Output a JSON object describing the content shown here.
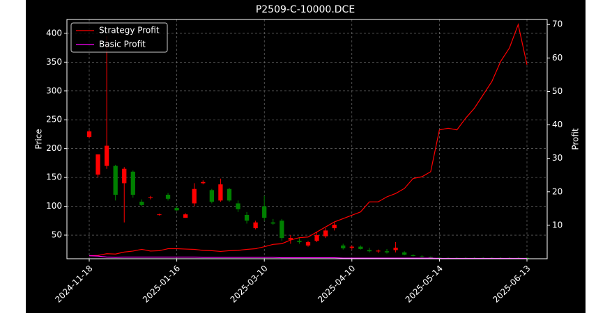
{
  "chart_data": {
    "type": "candlestick",
    "title": "P2509-C-10000.DCE",
    "ylabel": "Price",
    "y2label": "Profit",
    "categories": [
      "2024-11-18",
      null,
      null,
      null,
      null,
      null,
      null,
      null,
      null,
      null,
      "2025-01-16",
      null,
      null,
      null,
      null,
      null,
      null,
      null,
      null,
      null,
      "2025-03-10",
      null,
      null,
      null,
      null,
      null,
      null,
      null,
      null,
      null,
      "2025-04-10",
      null,
      null,
      null,
      null,
      null,
      null,
      null,
      null,
      null,
      "2025-05-14",
      null,
      null,
      null,
      null,
      null,
      null,
      null,
      null,
      null,
      "2025-06-13"
    ],
    "open": [
      220,
      155,
      170,
      170,
      140,
      160,
      108,
      115,
      85,
      120,
      97,
      80,
      105,
      140,
      128,
      110,
      130,
      105,
      85,
      62,
      100,
      72,
      75,
      42,
      40,
      32,
      40,
      48,
      62,
      32,
      28,
      30,
      24,
      22,
      22,
      24,
      20,
      15,
      13,
      12,
      11,
      10.5,
      10.5,
      10.5,
      10.5,
      10.5,
      10.5,
      10.5,
      10.5,
      10.5,
      10.5
    ],
    "high": [
      232,
      190,
      395,
      172,
      168,
      162,
      112,
      118,
      87,
      123,
      100,
      88,
      140,
      145,
      130,
      148,
      132,
      110,
      90,
      75,
      118,
      78,
      78,
      50,
      45,
      40,
      55,
      62,
      72,
      35,
      32,
      32,
      28,
      25,
      26,
      38,
      22,
      17,
      15,
      13,
      12,
      11.5,
      11.5,
      11.5,
      11.5,
      11.5,
      11.5,
      11.5,
      11.5,
      11.5,
      11.5
    ],
    "low": [
      218,
      150,
      165,
      110,
      72,
      115,
      100,
      112,
      84,
      110,
      92,
      80,
      100,
      138,
      105,
      108,
      108,
      90,
      70,
      60,
      75,
      68,
      40,
      35,
      35,
      30,
      38,
      45,
      58,
      25,
      25,
      25,
      20,
      19,
      18,
      20,
      15,
      13,
      11,
      10,
      9.5,
      9.5,
      9.5,
      9.5,
      9.5,
      9.5,
      9.5,
      9.5,
      9.5,
      9.5,
      9.5
    ],
    "close": [
      230,
      190,
      205,
      120,
      165,
      120,
      102,
      116,
      86,
      113,
      93,
      86,
      130,
      142,
      108,
      138,
      110,
      95,
      75,
      72,
      80,
      70,
      45,
      45,
      38,
      38,
      50,
      58,
      68,
      27,
      30,
      26,
      22,
      23,
      20,
      28,
      16,
      14,
      12,
      11,
      10,
      10,
      10,
      10,
      10,
      10,
      10,
      10,
      10,
      10,
      10
    ],
    "up_color": "#ff0000",
    "down_color": "#008000",
    "series": [
      {
        "name": "Strategy Profit",
        "color": "#ff0000",
        "axis": "y2",
        "values": [
          0.9,
          1.0,
          1.5,
          1.4,
          2.0,
          2.3,
          2.8,
          2.3,
          2.4,
          3.0,
          3.0,
          2.9,
          2.8,
          2.5,
          2.4,
          2.2,
          2.4,
          2.5,
          2.8,
          3.0,
          3.6,
          4.3,
          4.5,
          5.6,
          6.3,
          6.5,
          8.0,
          9.5,
          11.0,
          12.0,
          13.0,
          14.0,
          17.0,
          17.0,
          18.5,
          19.5,
          21.0,
          24.0,
          24.5,
          26.0,
          38.5,
          39.0,
          38.5,
          42.0,
          45.0,
          49.0,
          53.0,
          59.0,
          63.0,
          70.0,
          58.0
        ]
      },
      {
        "name": "Basic Profit",
        "color": "#ff00ff",
        "axis": "y2",
        "values": [
          0.9,
          0.8,
          0.5,
          0.4,
          0.5,
          0.5,
          0.5,
          0.5,
          0.5,
          0.5,
          0.5,
          0.5,
          0.5,
          0.4,
          0.4,
          0.4,
          0.4,
          0.4,
          0.4,
          0.4,
          0.4,
          0.4,
          0.3,
          0.3,
          0.3,
          0.3,
          0.3,
          0.3,
          0.3,
          0.2,
          0.2,
          0.2,
          0.2,
          0.2,
          0.2,
          0.2,
          0.2,
          0.2,
          0.2,
          0.2,
          0.1,
          0.1,
          0.1,
          0.1,
          0.1,
          0.1,
          0.1,
          0.1,
          0.1,
          0.1,
          0.1
        ]
      }
    ],
    "ylim": [
      9,
      424
    ],
    "yticks": [
      50,
      100,
      150,
      200,
      250,
      300,
      350,
      400
    ],
    "y2lim": [
      0,
      71.5
    ],
    "y2ticks": [
      10,
      20,
      30,
      40,
      50,
      60,
      70
    ],
    "grid": true,
    "legend": "upper left"
  }
}
